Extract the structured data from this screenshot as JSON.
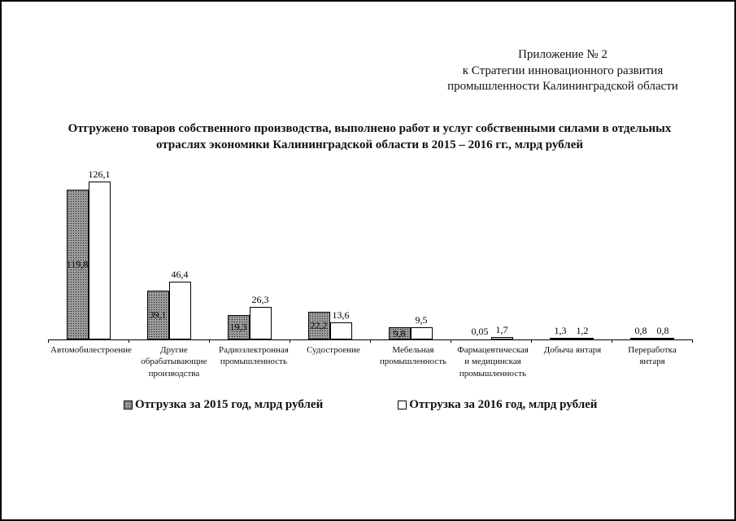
{
  "page": {
    "appendix_lines": [
      "Приложение № 2",
      "к Стратегии инновационного развития",
      "промышленности Калининградской области"
    ]
  },
  "chart_data": {
    "type": "bar",
    "title": "Отгружено товаров собственного производства, выполнено работ и услуг собственными силами в отдельных отраслях экономики Калининградской области в 2015 – 2016 гг., млрд рублей",
    "categories": [
      "Автомобилестроение",
      "Другие обрабатывающие производства",
      "Радиоэлектронная промышленность",
      "Судостроение",
      "Мебельная промышленность",
      "Фармацевтическая и медицинская промышленность",
      "Добыча янтаря",
      "Переработка янтаря"
    ],
    "series": [
      {
        "name": "Отгрузка за 2015 год, млрд рублей",
        "values": [
          119.8,
          39.1,
          19.3,
          22.2,
          9.8,
          0.05,
          1.3,
          0.8
        ],
        "labels": [
          "119,8",
          "39,1",
          "19,3",
          "22,2",
          "9,8",
          "0,05",
          "1,3",
          "0,8"
        ],
        "fill": "#9b9b9b",
        "pattern": "dotted-black"
      },
      {
        "name": "Отгрузка за 2016 год, млрд рублей",
        "values": [
          126.1,
          46.4,
          26.3,
          13.6,
          9.5,
          1.7,
          1.2,
          0.8
        ],
        "labels": [
          "126,1",
          "46,4",
          "26,3",
          "13,6",
          "9,5",
          "1,7",
          "1,2",
          "0,8"
        ],
        "fill": "#ffffff",
        "pattern": "none"
      }
    ],
    "xlabel": "",
    "ylabel": "",
    "ylim": [
      0,
      130
    ],
    "grid": false,
    "legend_position": "bottom",
    "colors": {
      "bar_border": "#000000",
      "axis": "#000000",
      "text": "#111111"
    }
  }
}
